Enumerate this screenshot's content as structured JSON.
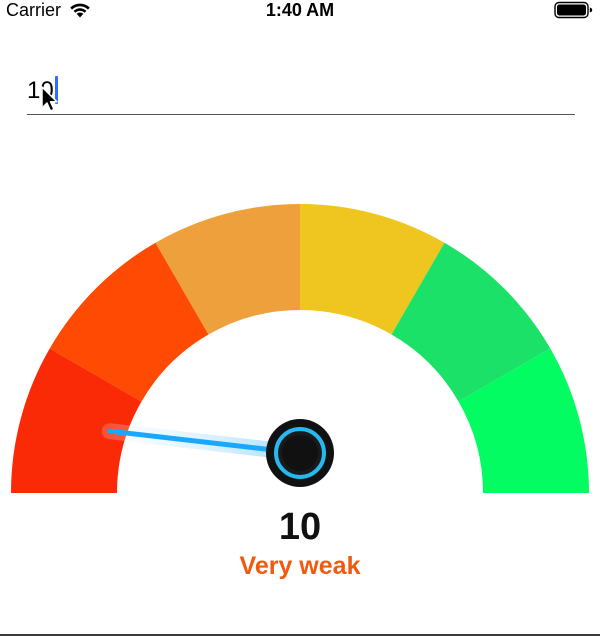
{
  "status_bar": {
    "carrier": "Carrier",
    "time": "1:40 AM",
    "wifi_icon": "wifi-icon",
    "battery_icon": "battery-full-icon"
  },
  "input": {
    "value": "10",
    "placeholder": ""
  },
  "gauge": {
    "min": 0,
    "max": 100,
    "value": 10,
    "segment_colors": [
      "#fa2a06",
      "#fe4a02",
      "#eea03d",
      "#eec61f",
      "#1ce169",
      "#03fc62"
    ],
    "needle_color": "#1aa8ff",
    "hub_color": "#111111",
    "hub_ring_color": "#25b9f0"
  },
  "score": {
    "value": "10",
    "label": "Very weak",
    "label_color": "#f05a0e"
  }
}
